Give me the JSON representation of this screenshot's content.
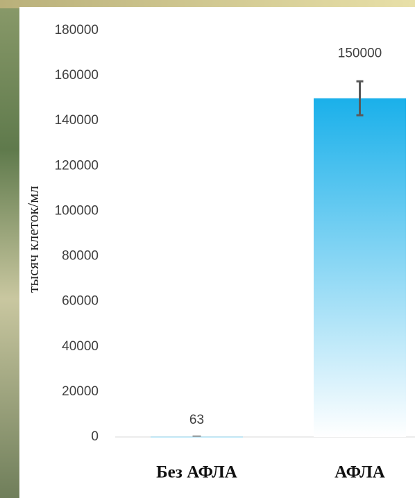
{
  "chart_data": {
    "type": "bar",
    "y_label": "тысяч клеток/мл",
    "categories": [
      "Без АФЛА",
      "АФЛА"
    ],
    "values": [
      63,
      150000
    ],
    "errors": [
      null,
      7500
    ],
    "color": "#1ab0ea",
    "ylim": [
      0,
      180000
    ],
    "yticks": [
      0,
      20000,
      40000,
      60000,
      80000,
      100000,
      120000,
      140000,
      160000,
      180000
    ]
  }
}
